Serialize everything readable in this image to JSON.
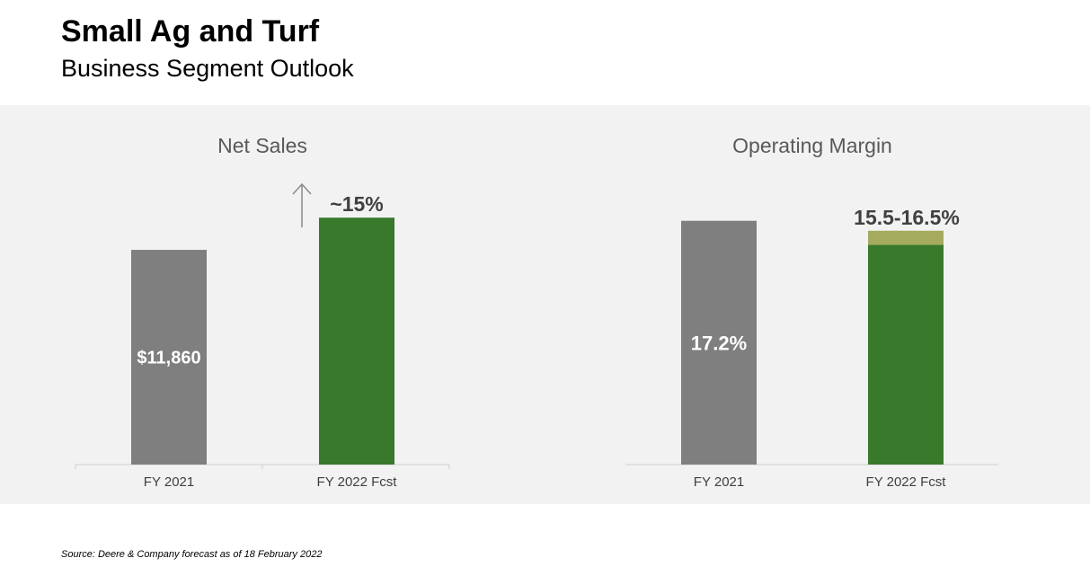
{
  "header": {
    "title": "Small Ag and Turf",
    "subtitle": "Business Segment Outlook"
  },
  "footer": {
    "source": "Source: Deere & Company forecast as of 18 February 2022"
  },
  "colors": {
    "gray_bar": "#7f7f7f",
    "green_bar": "#38792c",
    "range_band": "#a5ab5e",
    "panel_bg": "#f2f2f2",
    "arrow": "#8a8a8a"
  },
  "chart_data": [
    {
      "type": "bar",
      "title": "Net Sales",
      "categories": [
        "FY 2021",
        "FY 2022 Fcst"
      ],
      "values": [
        11860,
        13639
      ],
      "data_labels": [
        "$11,860",
        "~15%"
      ],
      "change_indicator": "up-arrow",
      "ylim": [
        0,
        13700
      ],
      "grid": false
    },
    {
      "type": "bar",
      "title": "Operating Margin",
      "categories": [
        "FY 2021",
        "FY 2022 Fcst"
      ],
      "values": [
        17.2,
        15.5
      ],
      "range_high": [
        null,
        16.5
      ],
      "data_labels": [
        "17.2%",
        "15.5-16.5%"
      ],
      "ylim": [
        0,
        17.5
      ],
      "grid": false
    }
  ]
}
